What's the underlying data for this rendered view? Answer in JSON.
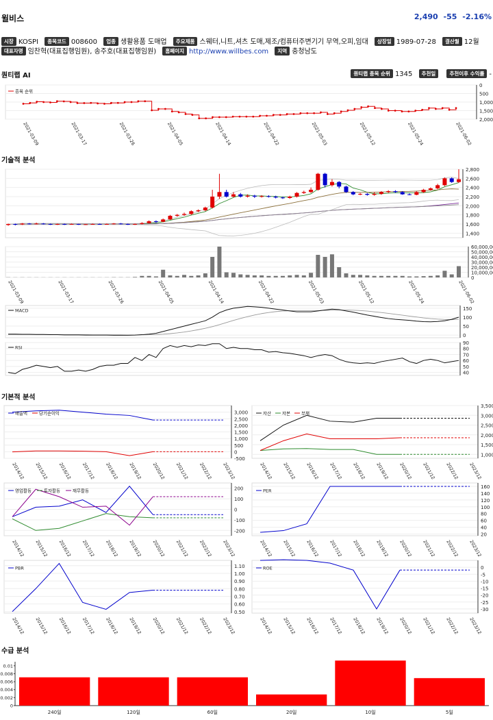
{
  "header": {
    "company": "윌비스",
    "price": "2,490",
    "change": "-55",
    "change_pct": "-2.16%"
  },
  "info_row1": [
    {
      "tag": "시장",
      "value": "KOSPI"
    },
    {
      "tag": "종목코드",
      "value": "008600"
    },
    {
      "tag": "업종",
      "value": "생활용품 도매업"
    },
    {
      "tag": "주요제품",
      "value": "스웨터,니트,셔츠 도매,제조/컴퓨터주변기기 무역,오피,임대"
    },
    {
      "tag": "상장일",
      "value": "1989-07-28"
    },
    {
      "tag": "결산월",
      "value": "12월"
    }
  ],
  "info_row2": {
    "ceo_tag": "대표자명",
    "ceo": "임찬혁(대표집행임원), 송주호(대표집행임원)",
    "home_tag": "홈페이지",
    "home": "http://www.willbes.com",
    "region_tag": "지역",
    "region": "충청남도"
  },
  "sections": {
    "quant": "퀀티랩 AI",
    "tech": "기술적 분석",
    "fund": "기본적 분석",
    "supply": "수급 분석"
  },
  "quant_right": {
    "rank_tag": "퀀티랩 종목 순위",
    "rank": "1345",
    "recommend_tag": "추천일",
    "return_tag": "추천이후 수익률",
    "return_val": "-"
  },
  "colors": {
    "up": "#e00000",
    "down": "#0000cc",
    "accent": "#1a3fb0"
  },
  "chart_data": [
    {
      "type": "line",
      "name": "rank",
      "legend": [
        "종목 순위"
      ],
      "y_inverted": true,
      "ylim": [
        0,
        2000
      ],
      "yticks": [
        "0",
        "500",
        "1,000",
        "1,500",
        "2,000"
      ],
      "x_ticks": [
        "2021-03-09",
        "2021-03-17",
        "2021-03-26",
        "2021-04-05",
        "2021-04-14",
        "2021-04-22",
        "2021-05-03",
        "2021-05-12",
        "2021-05-24",
        "2021-06-02"
      ],
      "values": [
        1100,
        1050,
        980,
        1000,
        1020,
        950,
        960,
        1000,
        1060,
        1060,
        1050,
        1080,
        1100,
        1050,
        1050,
        1000,
        1000,
        950,
        950,
        1480,
        1400,
        1400,
        1550,
        1600,
        1700,
        1750,
        1950,
        1950,
        1880,
        1880,
        1880,
        1850,
        1850,
        1850,
        1850,
        1800,
        1800,
        1750,
        1750,
        1700,
        1700,
        1650,
        1650,
        1650,
        1600,
        1700,
        1650,
        1550,
        1480,
        1400,
        1300,
        1250,
        1350,
        1400,
        1500,
        1500,
        1550,
        1550,
        1500,
        1450,
        1350,
        1400,
        1350,
        1450,
        1350
      ]
    },
    {
      "type": "candlestick",
      "name": "price",
      "ylim": [
        1300,
        2800
      ],
      "yticks": [
        "1,400",
        "1,600",
        "1,800",
        "2,000",
        "2,200",
        "2,400",
        "2,600",
        "2,800"
      ],
      "candles": [
        [
          1580,
          1600,
          1560,
          1610
        ],
        [
          1600,
          1590,
          1570,
          1610
        ],
        [
          1590,
          1610,
          1580,
          1620
        ],
        [
          1610,
          1600,
          1590,
          1620
        ],
        [
          1600,
          1610,
          1590,
          1630
        ],
        [
          1610,
          1600,
          1590,
          1620
        ],
        [
          1600,
          1590,
          1580,
          1610
        ],
        [
          1590,
          1600,
          1580,
          1610
        ],
        [
          1600,
          1595,
          1580,
          1610
        ],
        [
          1595,
          1600,
          1585,
          1610
        ],
        [
          1600,
          1590,
          1580,
          1605
        ],
        [
          1590,
          1595,
          1580,
          1600
        ],
        [
          1595,
          1600,
          1585,
          1610
        ],
        [
          1600,
          1595,
          1585,
          1610
        ],
        [
          1595,
          1600,
          1585,
          1610
        ],
        [
          1600,
          1610,
          1590,
          1620
        ],
        [
          1610,
          1600,
          1590,
          1620
        ],
        [
          1600,
          1590,
          1580,
          1610
        ],
        [
          1590,
          1600,
          1580,
          1610
        ],
        [
          1600,
          1620,
          1590,
          1640
        ],
        [
          1620,
          1660,
          1610,
          1680
        ],
        [
          1660,
          1650,
          1620,
          1680
        ],
        [
          1650,
          1700,
          1640,
          1720
        ],
        [
          1700,
          1780,
          1690,
          1800
        ],
        [
          1780,
          1800,
          1760,
          1820
        ],
        [
          1800,
          1820,
          1780,
          1850
        ],
        [
          1820,
          1880,
          1800,
          1900
        ],
        [
          1880,
          1900,
          1860,
          1920
        ],
        [
          1900,
          1960,
          1880,
          1980
        ],
        [
          1960,
          2200,
          1940,
          2350
        ],
        [
          2200,
          2300,
          2150,
          2700
        ],
        [
          2300,
          2200,
          2180,
          2350
        ],
        [
          2200,
          2250,
          2180,
          2300
        ],
        [
          2250,
          2200,
          2180,
          2280
        ],
        [
          2200,
          2220,
          2180,
          2250
        ],
        [
          2220,
          2200,
          2170,
          2240
        ],
        [
          2200,
          2210,
          2180,
          2230
        ],
        [
          2210,
          2200,
          2180,
          2230
        ],
        [
          2200,
          2180,
          2160,
          2220
        ],
        [
          2180,
          2170,
          2150,
          2200
        ],
        [
          2170,
          2200,
          2150,
          2220
        ],
        [
          2200,
          2280,
          2180,
          2300
        ],
        [
          2280,
          2300,
          2260,
          2330
        ],
        [
          2300,
          2350,
          2280,
          2400
        ],
        [
          2350,
          2700,
          2330,
          2720
        ],
        [
          2700,
          2450,
          2400,
          2720
        ],
        [
          2450,
          2520,
          2420,
          2580
        ],
        [
          2520,
          2420,
          2380,
          2540
        ],
        [
          2420,
          2300,
          2280,
          2440
        ],
        [
          2300,
          2250,
          2230,
          2320
        ],
        [
          2250,
          2260,
          2230,
          2280
        ],
        [
          2260,
          2240,
          2220,
          2280
        ],
        [
          2240,
          2260,
          2220,
          2300
        ],
        [
          2260,
          2300,
          2240,
          2320
        ],
        [
          2300,
          2320,
          2280,
          2340
        ],
        [
          2320,
          2300,
          2280,
          2340
        ],
        [
          2300,
          2250,
          2240,
          2320
        ],
        [
          2250,
          2240,
          2230,
          2270
        ],
        [
          2240,
          2300,
          2230,
          2320
        ],
        [
          2300,
          2350,
          2280,
          2370
        ],
        [
          2350,
          2380,
          2330,
          2400
        ],
        [
          2380,
          2450,
          2360,
          2480
        ],
        [
          2450,
          2600,
          2430,
          2620
        ],
        [
          2600,
          2520,
          2500,
          2620
        ],
        [
          2520,
          2580,
          2500,
          2800
        ]
      ]
    },
    {
      "type": "bar",
      "name": "volume",
      "ylim": [
        0,
        60000000
      ],
      "yticks": [
        "0",
        "10,000,000",
        "20,000,000",
        "30,000,000",
        "40,000,000",
        "50,000,000",
        "60,000,000"
      ],
      "values": [
        400000,
        300000,
        350000,
        300000,
        300000,
        250000,
        300000,
        250000,
        300000,
        250000,
        300000,
        250000,
        300000,
        250000,
        300000,
        500000,
        400000,
        400000,
        1000000,
        3000000,
        3000000,
        2000000,
        15000000,
        4000000,
        3000000,
        5000000,
        3000000,
        4000000,
        8000000,
        40000000,
        62000000,
        10000000,
        9000000,
        6000000,
        5000000,
        4000000,
        4000000,
        3000000,
        3000000,
        3000000,
        4000000,
        5000000,
        4000000,
        9000000,
        44000000,
        40000000,
        45000000,
        20000000,
        8000000,
        5000000,
        5000000,
        4000000,
        3000000,
        3000000,
        3000000,
        3000000,
        3000000,
        2000000,
        2000000,
        2500000,
        3000000,
        4000000,
        13000000,
        6000000,
        22000000
      ]
    },
    {
      "type": "line",
      "name": "macd",
      "legend": [
        "MACD"
      ],
      "ylim": [
        -15,
        165
      ],
      "yticks": [
        "0",
        "50",
        "100",
        "150"
      ],
      "macd": [
        5,
        5,
        4,
        4,
        3,
        3,
        2,
        2,
        1,
        1,
        1,
        0,
        0,
        0,
        0,
        -1,
        -1,
        -1,
        0,
        2,
        5,
        10,
        20,
        30,
        40,
        50,
        60,
        70,
        80,
        100,
        125,
        140,
        150,
        155,
        160,
        158,
        155,
        150,
        145,
        140,
        135,
        130,
        130,
        130,
        135,
        140,
        145,
        142,
        135,
        128,
        120,
        112,
        105,
        98,
        92,
        88,
        85,
        82,
        78,
        75,
        74,
        76,
        80,
        88,
        100
      ],
      "signal": [
        3,
        3,
        3,
        3,
        3,
        3,
        3,
        2,
        2,
        2,
        2,
        2,
        1,
        1,
        1,
        1,
        1,
        0,
        0,
        1,
        2,
        3,
        5,
        8,
        12,
        17,
        23,
        30,
        38,
        47,
        58,
        70,
        82,
        93,
        103,
        112,
        120,
        126,
        131,
        134,
        136,
        137,
        137,
        137,
        137,
        138,
        139,
        140,
        140,
        139,
        137,
        134,
        130,
        126,
        121,
        116,
        111,
        106,
        101,
        96,
        92,
        89,
        87,
        86,
        88
      ]
    },
    {
      "type": "line",
      "name": "rsi",
      "legend": [
        "RSI"
      ],
      "ylim": [
        35,
        90
      ],
      "yticks": [
        "40",
        "50",
        "60",
        "70",
        "80",
        "90"
      ],
      "values": [
        40,
        38,
        45,
        48,
        52,
        50,
        48,
        50,
        42,
        42,
        44,
        42,
        45,
        50,
        52,
        52,
        55,
        55,
        65,
        60,
        70,
        65,
        80,
        85,
        82,
        85,
        83,
        86,
        85,
        88,
        88,
        80,
        82,
        80,
        80,
        78,
        78,
        74,
        75,
        73,
        72,
        70,
        68,
        65,
        68,
        70,
        68,
        62,
        58,
        56,
        55,
        56,
        55,
        58,
        60,
        62,
        64,
        58,
        55,
        60,
        62,
        60,
        56,
        58,
        60
      ]
    },
    {
      "type": "line",
      "name": "revenue_profit",
      "legend": [
        "매출액",
        "당기순이익"
      ],
      "categories": [
        "2014/12",
        "2015/12",
        "2016/12",
        "2017/12",
        "2018/12",
        "2019/12",
        "2020/12",
        "2021/12",
        "2022/12",
        "2023/12"
      ],
      "ylim": [
        -500,
        3500
      ],
      "yticks": [
        "-500",
        "0",
        "500",
        "1,000",
        "1,500",
        "2,000",
        "2,500",
        "3,000"
      ],
      "series": [
        {
          "name": "매출액",
          "values": [
            3000,
            3100,
            3150,
            3000,
            2850,
            2750,
            2400,
            2400,
            2400,
            2400
          ]
        },
        {
          "name": "당기순이익",
          "values": [
            -10,
            60,
            60,
            40,
            0,
            -300,
            0,
            0,
            0,
            0
          ]
        }
      ]
    },
    {
      "type": "line",
      "name": "balance",
      "legend": [
        "자산",
        "자본",
        "부채"
      ],
      "categories": [
        "2014/12",
        "2015/12",
        "2016/12",
        "2017/12",
        "2018/12",
        "2019/12",
        "2020/12",
        "2021/12",
        "2022/12",
        "2023/12"
      ],
      "ylim": [
        800,
        3500
      ],
      "yticks": [
        "1,000",
        "1,500",
        "2,000",
        "2,500",
        "3,000",
        "3,500"
      ],
      "series": [
        {
          "name": "자산",
          "values": [
            1700,
            2500,
            3000,
            2700,
            2650,
            2850,
            2850,
            2850,
            2850,
            2850
          ]
        },
        {
          "name": "자본",
          "values": [
            1200,
            1280,
            1300,
            1250,
            1250,
            1000,
            1000,
            1000,
            1000,
            1000
          ]
        },
        {
          "name": "부채",
          "values": [
            1200,
            1700,
            2050,
            1800,
            1800,
            1800,
            1850,
            1850,
            1850,
            1850
          ]
        }
      ]
    },
    {
      "type": "line",
      "name": "cashflow",
      "legend": [
        "영업활동",
        "투자활동",
        "재무활동"
      ],
      "categories": [
        "2014/12",
        "2015/12",
        "2016/12",
        "2017/12",
        "2018/12",
        "2019/12",
        "2020/12",
        "2021/12",
        "2022/12",
        "2023/12"
      ],
      "ylim": [
        -250,
        250
      ],
      "yticks": [
        "-200",
        "-100",
        "0",
        "100",
        "200"
      ],
      "series": [
        {
          "name": "영업활동",
          "values": [
            -70,
            20,
            30,
            90,
            -30,
            220,
            -50,
            -50,
            -50,
            -50
          ]
        },
        {
          "name": "투자활동",
          "values": [
            -90,
            -200,
            -180,
            -110,
            -40,
            -70,
            -80,
            -80,
            -80,
            -80
          ]
        },
        {
          "name": "재무활동",
          "values": [
            -70,
            190,
            120,
            20,
            30,
            -150,
            120,
            120,
            120,
            120
          ]
        }
      ]
    },
    {
      "type": "line",
      "name": "per",
      "legend": [
        "PER"
      ],
      "categories": [
        "2014/12",
        "2015/12",
        "2016/12",
        "2017/12",
        "2018/12",
        "2019/12",
        "2020/12",
        "2021/12",
        "2022/12",
        "2023/12"
      ],
      "ylim": [
        15,
        170
      ],
      "yticks": [
        "20",
        "40",
        "60",
        "80",
        "100",
        "120",
        "140",
        "160"
      ],
      "values": [
        25,
        30,
        50,
        160,
        160,
        160,
        160,
        160,
        160,
        160
      ]
    },
    {
      "type": "line",
      "name": "pbr",
      "legend": [
        "PBR"
      ],
      "categories": [
        "2014/12",
        "2015/12",
        "2016/12",
        "2017/12",
        "2018/12",
        "2019/12",
        "2020/12",
        "2021/12",
        "2022/12",
        "2023/12"
      ],
      "ylim": [
        0.48,
        1.17
      ],
      "yticks": [
        "0.50",
        "0.60",
        "0.70",
        "0.80",
        "0.90",
        "1.00",
        "1.10"
      ],
      "values": [
        0.5,
        0.8,
        1.13,
        0.62,
        0.53,
        0.75,
        0.78,
        0.78,
        0.78,
        0.78
      ]
    },
    {
      "type": "line",
      "name": "roe",
      "legend": [
        "ROE"
      ],
      "categories": [
        "2014/12",
        "2015/12",
        "2016/12",
        "2017/12",
        "2018/12",
        "2019/12",
        "2020/12",
        "2021/12",
        "2022/12",
        "2023/12"
      ],
      "ylim": [
        -33,
        5
      ],
      "yticks": [
        "0",
        "-5",
        "-10",
        "-15",
        "-20",
        "-25",
        "-30"
      ],
      "values": [
        5,
        5.5,
        5,
        3,
        -2,
        -30,
        -2,
        -2,
        -2,
        -2
      ]
    },
    {
      "type": "bar",
      "name": "supply",
      "categories": [
        "240일",
        "120일",
        "60일",
        "20일",
        "10일",
        "5일"
      ],
      "ylim": [
        0,
        0.011
      ],
      "yticks": [
        "0",
        "0.002",
        "0.004",
        "0.006",
        "0.008",
        "0.01"
      ],
      "values": [
        0.0071,
        0.0071,
        0.0071,
        0.0028,
        0.0113,
        0.0069
      ]
    }
  ]
}
